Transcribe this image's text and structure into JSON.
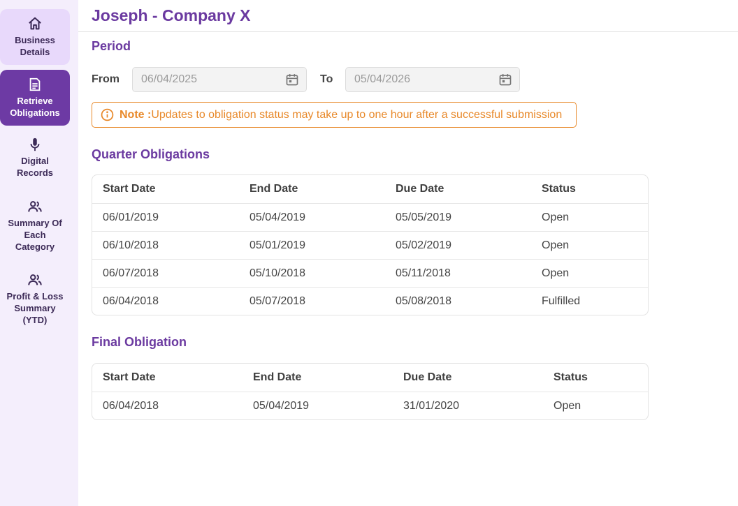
{
  "sidebar": {
    "items": [
      {
        "label_line1": "Business",
        "label_line2": "Details",
        "icon": "home-icon"
      },
      {
        "label_line1": "Retrieve",
        "label_line2": "Obligations",
        "icon": "document-icon",
        "active": true
      },
      {
        "label_line1": "Digital",
        "label_line2": "Records",
        "icon": "microphone-icon"
      },
      {
        "label_line1": "Summary Of",
        "label_line2": "Each",
        "label_line3": "Category",
        "icon": "users-icon"
      },
      {
        "label_line1": "Profit & Loss",
        "label_line2": "Summary",
        "label_line3": "(YTD)",
        "icon": "users-icon"
      }
    ]
  },
  "header": {
    "title": "Joseph - Company X"
  },
  "period": {
    "title": "Period",
    "from_label": "From",
    "from_value": "06/04/2025",
    "to_label": "To",
    "to_value": "05/04/2026"
  },
  "note": {
    "prefix": "Note :",
    "text": "Updates to obligation status may take up to one hour after a successful submission"
  },
  "quarter": {
    "title": "Quarter Obligations",
    "columns": [
      "Start Date",
      "End Date",
      "Due Date",
      "Status"
    ],
    "rows": [
      [
        "06/01/2019",
        "05/04/2019",
        "05/05/2019",
        "Open"
      ],
      [
        "06/10/2018",
        "05/01/2019",
        "05/02/2019",
        "Open"
      ],
      [
        "06/07/2018",
        "05/10/2018",
        "05/11/2018",
        "Open"
      ],
      [
        "06/04/2018",
        "05/07/2018",
        "05/08/2018",
        "Fulfilled"
      ]
    ]
  },
  "final": {
    "title": "Final Obligation",
    "columns": [
      "Start Date",
      "End Date",
      "Due Date",
      "Status"
    ],
    "rows": [
      [
        "06/04/2018",
        "05/04/2019",
        "31/01/2020",
        "Open"
      ]
    ]
  },
  "colors": {
    "accent": "#6b3aa0",
    "active_nav": "#6d3aa4",
    "warning": "#e8892a"
  }
}
